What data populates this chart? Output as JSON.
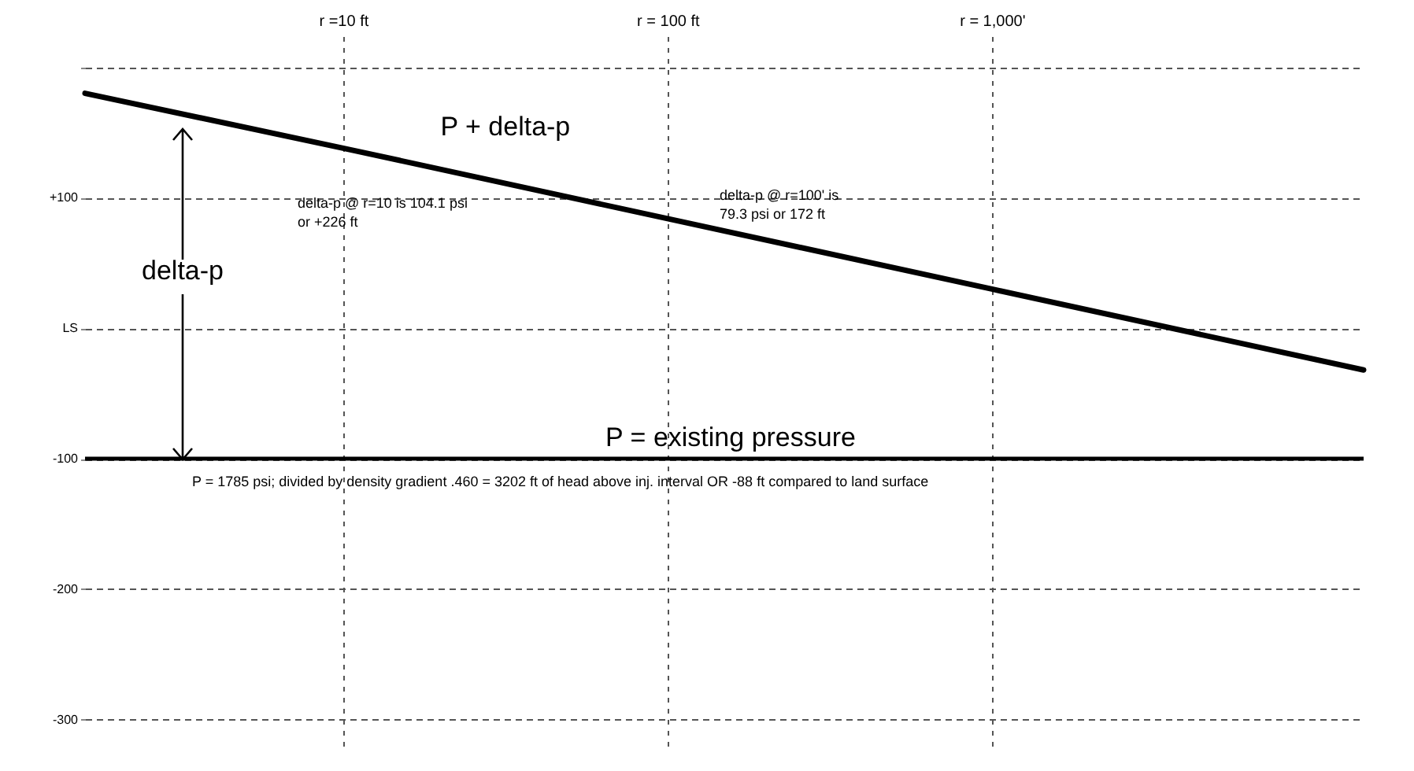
{
  "chart_data": {
    "type": "line",
    "log": "x",
    "grid": true,
    "xlim": [
      1.6,
      14000
    ],
    "xticks": [
      {
        "value": 10,
        "label": "r =10 ft"
      },
      {
        "value": 100,
        "label": "r = 100 ft"
      },
      {
        "value": 1000,
        "label": "r = 1,000'"
      }
    ],
    "ylim": [
      -320,
      225
    ],
    "yticks": [
      {
        "value": 200,
        "label": null
      },
      {
        "value": 100,
        "label": "+100"
      },
      {
        "value": 0,
        "label": "LS"
      },
      {
        "value": -100,
        "label": "-100"
      },
      {
        "value": -200,
        "label": "-200"
      },
      {
        "value": -300,
        "label": "-300"
      }
    ],
    "x": [
      1.6,
      10,
      100,
      1000,
      14000
    ],
    "series": [
      {
        "name": "P + delta-p",
        "color": "#000000",
        "values": [
          180,
          138,
          84,
          30,
          -32
        ]
      }
    ],
    "ref_lines": [
      {
        "axis": "y",
        "value": -100,
        "label": "P = existing pressure",
        "color": "#000000"
      }
    ],
    "annotations": [
      "delta-p @ r=10 is 104.1 psi\nor +226 ft",
      "delta-p @ r=100' is\n79.3 psi or 172 ft",
      {
        "text": "delta-p",
        "x": 3.2,
        "y": -100
      },
      "P = 1785 psi; divided by density gradient .460 = 3202 ft of head above inj. interval OR -88 ft compared to land surface"
    ]
  }
}
